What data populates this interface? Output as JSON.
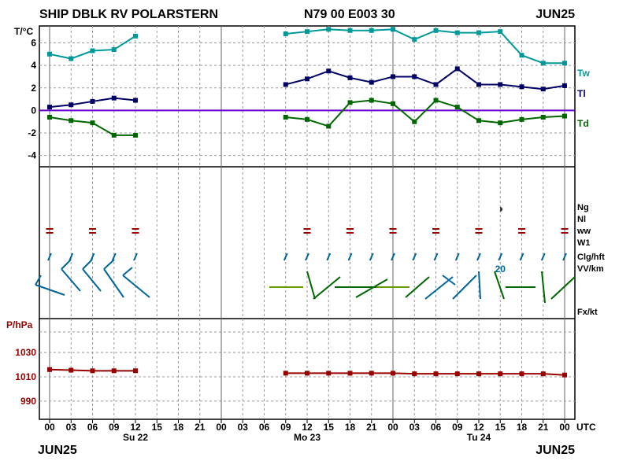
{
  "header": {
    "station": "SHIP DBLK RV POLARSTERN",
    "position": "N79 00 E003 30",
    "month_top": "JUN25"
  },
  "footer": {
    "month_left": "JUN25",
    "month_right": "JUN25"
  },
  "colors": {
    "tw": "#009999",
    "tl": "#000066",
    "td": "#006600",
    "zero_line": "#6600cc",
    "pressure": "#990000",
    "ww": "#990000",
    "grid": "#999999",
    "wind_blue": "#006699",
    "wind_green": "#006600",
    "wind_olive": "#669900"
  },
  "chart_data": [
    {
      "type": "line",
      "panel": "temperature",
      "ylabel": "T/°C",
      "ylim": [
        -5,
        7.5
      ],
      "yticks": [
        -4,
        -2,
        0,
        2,
        4,
        6
      ],
      "grid": true,
      "x": [
        "00",
        "03",
        "06",
        "09",
        "12",
        "15",
        "18",
        "21",
        "00",
        "03",
        "06",
        "09",
        "12",
        "15",
        "18",
        "21",
        "00",
        "03",
        "06",
        "09",
        "12",
        "15",
        "18",
        "21",
        "00"
      ],
      "series": [
        {
          "name": "Tw",
          "values": [
            5.0,
            4.6,
            5.3,
            5.4,
            6.6,
            null,
            null,
            null,
            null,
            null,
            null,
            6.8,
            7.0,
            7.2,
            7.1,
            7.1,
            7.2,
            6.3,
            7.1,
            6.9,
            6.9,
            7.0,
            4.9,
            4.2,
            4.2
          ]
        },
        {
          "name": "Tl",
          "values": [
            0.3,
            0.5,
            0.8,
            1.1,
            0.9,
            null,
            null,
            null,
            null,
            null,
            null,
            2.3,
            2.8,
            3.5,
            2.9,
            2.5,
            3.0,
            3.0,
            2.3,
            3.7,
            2.3,
            2.3,
            2.1,
            1.9,
            2.2
          ]
        },
        {
          "name": "Td",
          "values": [
            -0.6,
            -0.9,
            -1.1,
            -2.2,
            -2.2,
            null,
            null,
            null,
            null,
            null,
            null,
            -0.6,
            -0.8,
            -1.4,
            0.7,
            0.9,
            0.6,
            -1.0,
            0.9,
            0.3,
            -0.9,
            -1.1,
            -0.8,
            -0.6,
            -0.5
          ]
        }
      ]
    },
    {
      "type": "line",
      "panel": "pressure",
      "ylabel": "P/hPa",
      "ylim": [
        975,
        1058
      ],
      "yticks": [
        990,
        1010,
        1030
      ],
      "grid": true,
      "x": [
        "00",
        "03",
        "06",
        "09",
        "12",
        "15",
        "18",
        "21",
        "00",
        "03",
        "06",
        "09",
        "12",
        "15",
        "18",
        "21",
        "00",
        "03",
        "06",
        "09",
        "12",
        "15",
        "18",
        "21",
        "00"
      ],
      "series": [
        {
          "name": "P",
          "values": [
            1016,
            1015.5,
            1015,
            1015,
            1015,
            null,
            null,
            null,
            null,
            null,
            null,
            1013,
            1013,
            1013,
            1013,
            1013,
            1013,
            1012.5,
            1012.5,
            1012.5,
            1012.5,
            1012.5,
            1012.5,
            1012.5,
            1011.5
          ]
        }
      ]
    }
  ],
  "right_labels": {
    "tw": "Tw",
    "tl": "Tl",
    "td": "Td",
    "ng": "Ng",
    "nl": "Nl",
    "ww": "ww",
    "w1": "W1",
    "clg": "Clg/hft",
    "vv": "VV/km",
    "fx": "Fx/kt"
  },
  "weather": {
    "ww_symbol": "=",
    "ww_indices": [
      0,
      2,
      4,
      12,
      14,
      16,
      18,
      20,
      22,
      24
    ],
    "cloud_symbol": "◑",
    "cloud_index": 21,
    "cloud_tick_indices": [
      0,
      1,
      2,
      3,
      4,
      11,
      12,
      13,
      14,
      15,
      16,
      17,
      18,
      19,
      20,
      21,
      22,
      23,
      24
    ],
    "visibility_label": "20",
    "visibility_index": 21
  },
  "x_axis": {
    "tick_labels": [
      "00",
      "03",
      "06",
      "09",
      "12",
      "15",
      "18",
      "21",
      "00",
      "03",
      "06",
      "09",
      "12",
      "15",
      "18",
      "21",
      "00",
      "03",
      "06",
      "09",
      "12",
      "15",
      "18",
      "21",
      "00"
    ],
    "unit": "UTC",
    "days": [
      {
        "label": "Su 22",
        "index": 4
      },
      {
        "label": "Mo 23",
        "index": 12
      },
      {
        "label": "Tu 24",
        "index": 20
      }
    ]
  }
}
